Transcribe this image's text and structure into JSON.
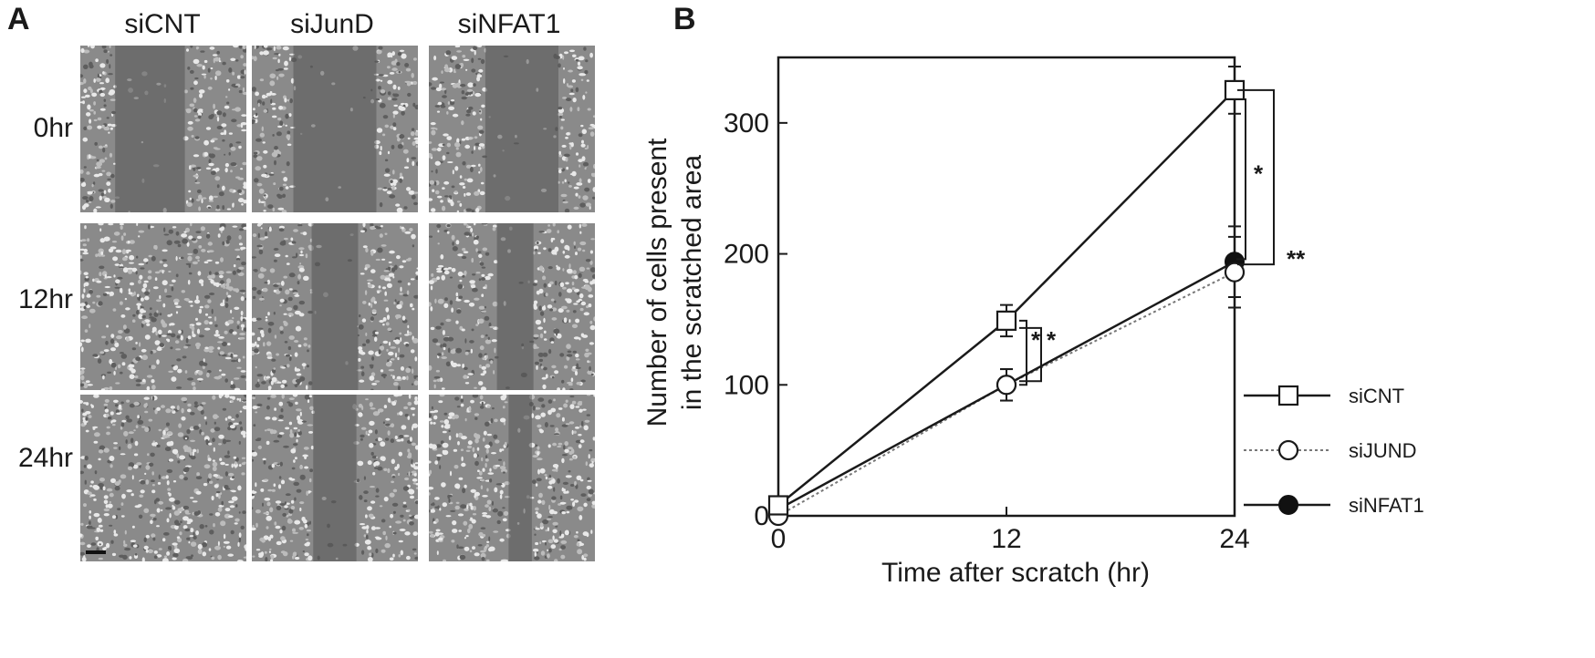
{
  "panel_a": {
    "letter": "A",
    "columns": [
      "siCNT",
      "siJunD",
      "siNFAT1"
    ],
    "rows": [
      "0hr",
      "12hr",
      "24hr"
    ]
  },
  "panel_b": {
    "letter": "B"
  },
  "chart_data": {
    "type": "line",
    "xlabel": "Time after scratch (hr)",
    "ylabel_lines": [
      "Number of cells present",
      "in the scratched area"
    ],
    "x": [
      0,
      12,
      24
    ],
    "x_ticks": [
      "0",
      "12",
      "24"
    ],
    "y_ticks": [
      "0",
      "100",
      "200",
      "300"
    ],
    "xlim": [
      0,
      24
    ],
    "ylim": [
      0,
      350
    ],
    "grid": false,
    "legend_position": "bottom-right",
    "series": [
      {
        "name": "siCNT",
        "marker": "open-square",
        "line": "solid",
        "values": [
          8,
          149,
          325
        ],
        "errors": [
          0,
          12,
          18
        ]
      },
      {
        "name": "siJUND",
        "marker": "open-circle",
        "line": "dotted",
        "values": [
          0,
          100,
          186
        ],
        "errors": [
          0,
          12,
          27
        ]
      },
      {
        "name": "siNFAT1",
        "marker": "filled-circle",
        "line": "solid",
        "values": [
          5,
          100,
          194
        ],
        "errors": [
          0,
          12,
          27
        ]
      }
    ],
    "significance": [
      {
        "label": "*",
        "between": [
          "siCNT",
          "siJUND"
        ],
        "at_x": 12
      },
      {
        "label": "*",
        "between": [
          "siCNT",
          "siNFAT1"
        ],
        "at_x": 12
      },
      {
        "label": "*",
        "between": [
          "siCNT",
          "siJUND"
        ],
        "at_x": 24
      },
      {
        "label": "**",
        "between": [
          "siCNT",
          "siNFAT1"
        ],
        "at_x": 24
      }
    ]
  }
}
